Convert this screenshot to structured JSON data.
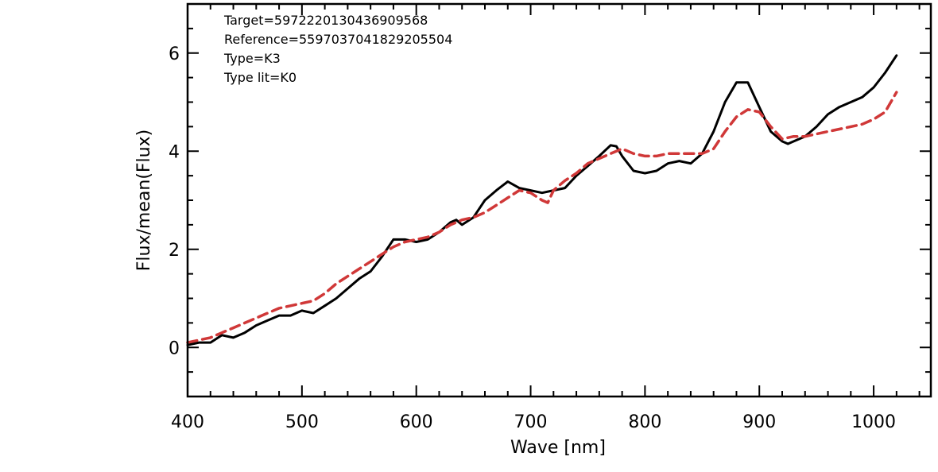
{
  "chart_data": {
    "type": "line",
    "title": "",
    "xlabel": "Wave [nm]",
    "ylabel": "Flux/mean(Flux)",
    "xlim": [
      400,
      1050
    ],
    "ylim": [
      -1,
      7
    ],
    "x_ticks": [
      400,
      500,
      600,
      700,
      800,
      900,
      1000
    ],
    "y_ticks": [
      0,
      2,
      4,
      6
    ],
    "x_tick_labels": [
      "400",
      "500",
      "600",
      "700",
      "800",
      "900",
      "1000"
    ],
    "y_tick_labels": [
      "0",
      "2",
      "4",
      "6"
    ],
    "grid": false,
    "legend": "none",
    "annotations": [
      "Target=5972220130436909568",
      "Reference=5597037041829205504",
      "Type=K3",
      "Type lit=K0"
    ],
    "series": [
      {
        "color": "#000000",
        "style": "solid",
        "x": [
          400,
          410,
          420,
          430,
          440,
          450,
          460,
          470,
          480,
          490,
          500,
          510,
          520,
          530,
          540,
          550,
          560,
          570,
          580,
          590,
          600,
          610,
          620,
          630,
          635,
          640,
          650,
          660,
          670,
          680,
          690,
          700,
          710,
          720,
          730,
          740,
          750,
          760,
          770,
          775,
          780,
          790,
          800,
          810,
          820,
          830,
          840,
          850,
          860,
          870,
          880,
          890,
          900,
          910,
          920,
          925,
          930,
          940,
          950,
          960,
          970,
          980,
          990,
          1000,
          1010,
          1020
        ],
        "y": [
          0.05,
          0.1,
          0.1,
          0.25,
          0.2,
          0.3,
          0.45,
          0.55,
          0.65,
          0.65,
          0.75,
          0.7,
          0.85,
          1.0,
          1.2,
          1.4,
          1.55,
          1.85,
          2.2,
          2.2,
          2.15,
          2.2,
          2.35,
          2.55,
          2.6,
          2.5,
          2.65,
          3.0,
          3.2,
          3.38,
          3.25,
          3.2,
          3.15,
          3.2,
          3.25,
          3.5,
          3.7,
          3.9,
          4.12,
          4.1,
          3.9,
          3.6,
          3.55,
          3.6,
          3.75,
          3.8,
          3.75,
          3.95,
          4.4,
          5.0,
          5.4,
          5.4,
          4.9,
          4.4,
          4.2,
          4.15,
          4.2,
          4.3,
          4.5,
          4.75,
          4.9,
          5.0,
          5.1,
          5.3,
          5.6,
          5.95
        ]
      },
      {
        "color": "#d03838",
        "style": "dashed",
        "x": [
          400,
          410,
          420,
          430,
          440,
          450,
          460,
          470,
          480,
          490,
          500,
          510,
          520,
          530,
          540,
          550,
          560,
          570,
          580,
          590,
          600,
          610,
          620,
          630,
          640,
          650,
          660,
          670,
          680,
          690,
          700,
          710,
          715,
          720,
          730,
          740,
          750,
          760,
          770,
          780,
          790,
          800,
          810,
          820,
          830,
          840,
          850,
          860,
          870,
          880,
          890,
          900,
          910,
          920,
          930,
          940,
          950,
          960,
          970,
          980,
          990,
          1000,
          1010,
          1020
        ],
        "y": [
          0.1,
          0.15,
          0.2,
          0.3,
          0.4,
          0.5,
          0.6,
          0.7,
          0.8,
          0.85,
          0.9,
          0.95,
          1.1,
          1.3,
          1.45,
          1.6,
          1.75,
          1.9,
          2.05,
          2.15,
          2.2,
          2.25,
          2.35,
          2.5,
          2.6,
          2.65,
          2.75,
          2.9,
          3.05,
          3.2,
          3.15,
          3.0,
          2.95,
          3.2,
          3.4,
          3.55,
          3.75,
          3.85,
          3.95,
          4.05,
          3.95,
          3.9,
          3.9,
          3.95,
          3.95,
          3.95,
          3.95,
          4.05,
          4.4,
          4.7,
          4.85,
          4.8,
          4.5,
          4.25,
          4.3,
          4.3,
          4.35,
          4.4,
          4.45,
          4.5,
          4.55,
          4.65,
          4.8,
          5.2
        ]
      }
    ]
  }
}
